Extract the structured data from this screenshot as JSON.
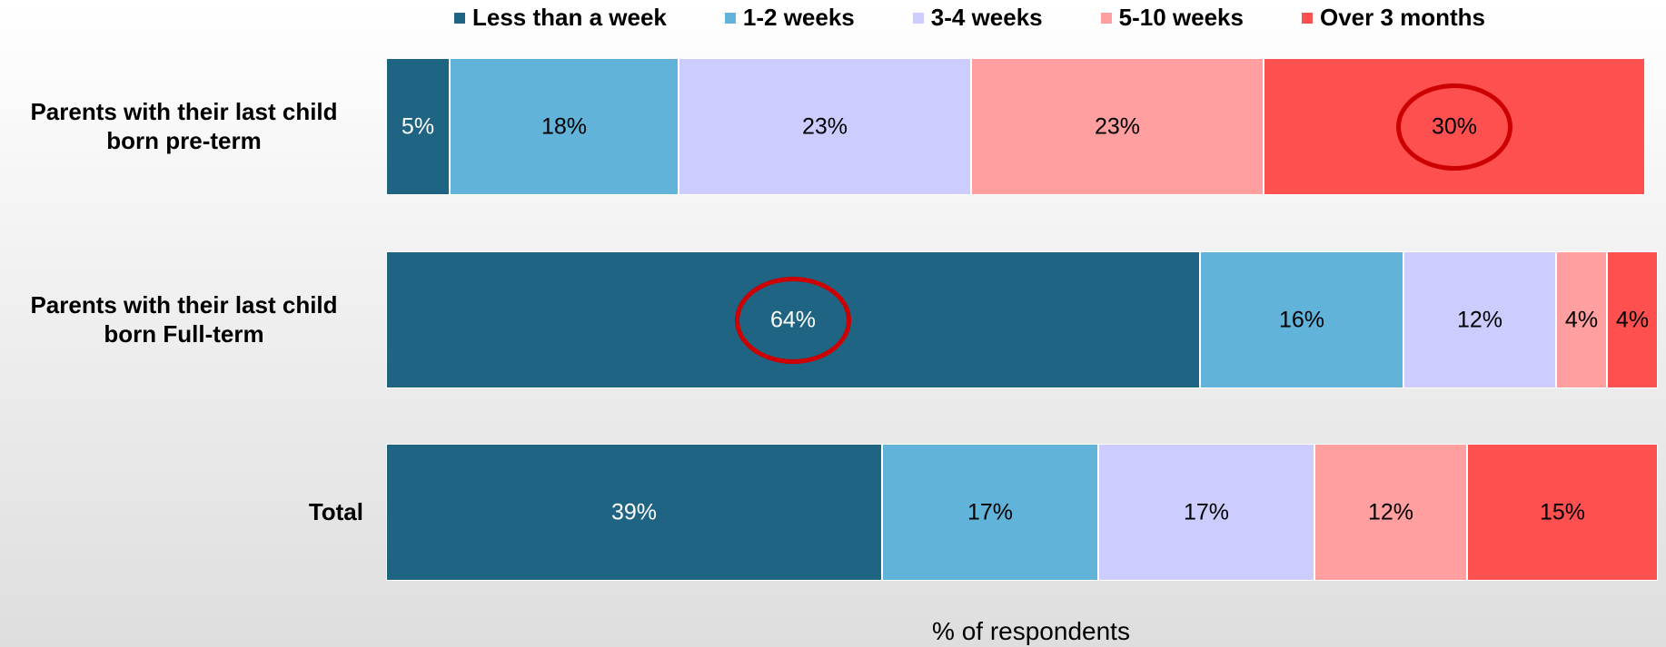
{
  "chart_data": {
    "type": "stacked_bar_horizontal",
    "xlabel": "% of respondents",
    "categories": [
      "Parents with their last child born pre-term",
      "Parents with their last child born Full-term",
      "Total"
    ],
    "xlim": [
      0,
      100
    ],
    "series": [
      {
        "name": "Less than a week",
        "color": "#1f6482",
        "values": [
          5,
          64,
          39
        ],
        "value_labels": [
          "5%",
          "64%",
          "39%"
        ]
      },
      {
        "name": "1-2 weeks",
        "color": "#62b3da",
        "values": [
          18,
          16,
          17
        ],
        "value_labels": [
          "18%",
          "16%",
          "17%"
        ]
      },
      {
        "name": "3-4 weeks",
        "color": "#ccccff",
        "values": [
          23,
          12,
          17
        ],
        "value_labels": [
          "23%",
          "12%",
          "17%"
        ]
      },
      {
        "name": "5-10 weeks",
        "color": "#ff9f9f",
        "values": [
          23,
          4,
          12
        ],
        "value_labels": [
          "23%",
          "4%",
          "12%"
        ]
      },
      {
        "name": "Over 3 months",
        "color": "#ff5050",
        "values": [
          30,
          4,
          15
        ],
        "value_labels": [
          "30%",
          "4%",
          "15%"
        ]
      }
    ],
    "legend": "top"
  }
}
